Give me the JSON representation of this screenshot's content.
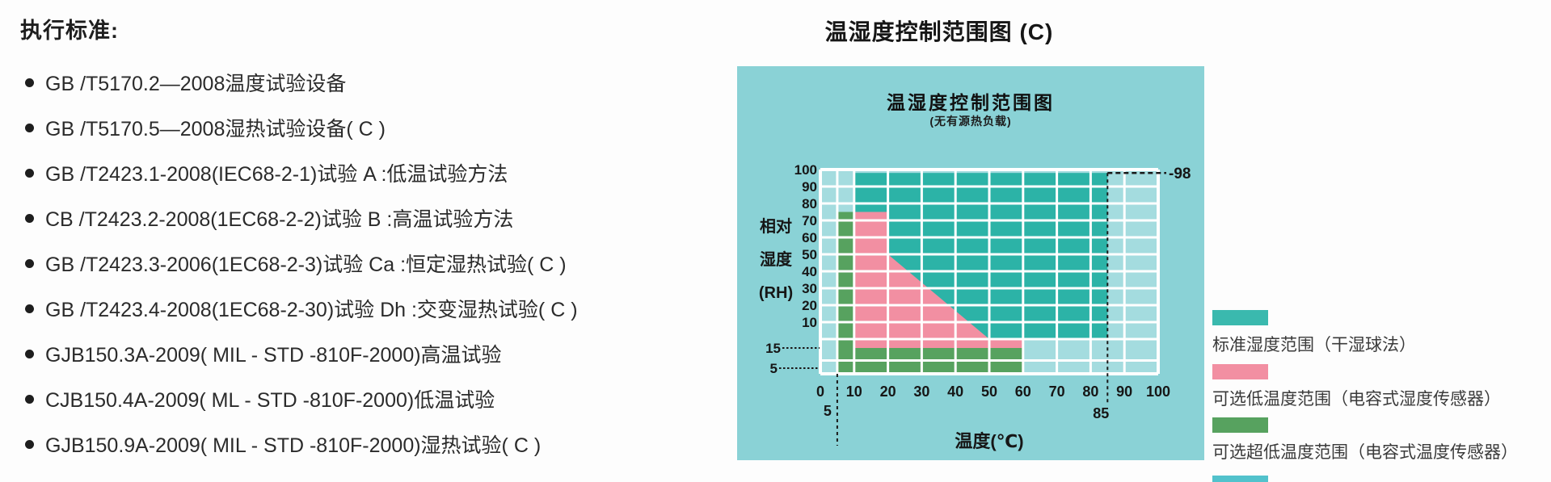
{
  "standards": {
    "heading": "执行标准:",
    "items": [
      "GB /T5170.2—2008温度试验设备",
      "GB /T5170.5—2008湿热试验设备( C )",
      "GB /T2423.1-2008(IEC68-2-1)试验 A :低温试验方法",
      "CB /T2423.2-2008(1EC68-2-2)试验 B :高温试验方法",
      "GB /T2423.3-2006(1EC68-2-3)试验 Ca :恒定湿热试验( C )",
      "GB /T2423.4-2008(1EC68-2-30)试验 Dh :交变湿热试验( C )",
      "GJB150.3A-2009( MIL - STD -810F-2000)高温试验",
      "CJB150.4A-2009( ML - STD -810F-2000)低温试验",
      "GJB150.9A-2009( MIL - STD -810F-2000)湿热试验( C )"
    ]
  },
  "chart": {
    "outer_title": "温湿度控制范围图 (C)"
  },
  "chart_data": {
    "type": "area",
    "title": "温湿度控制范围图",
    "subtitle": "(无有源热负载)",
    "xlabel": "温度(℃)",
    "ylabel": "相对湿度(RH)",
    "ylabel_lines": [
      "相对",
      "湿度",
      "(RH)"
    ],
    "x_ticks": [
      0,
      10,
      20,
      30,
      40,
      50,
      60,
      70,
      80,
      90,
      100
    ],
    "x_sub_ticks": [
      5,
      85
    ],
    "y_ticks": [
      100,
      90,
      80,
      70,
      60,
      50,
      40,
      30,
      20,
      10
    ],
    "y_sub_ticks": [
      15,
      5
    ],
    "xlim": [
      0,
      100
    ],
    "ylim": [
      0,
      100
    ],
    "grid": true,
    "max_humidity_line": {
      "value": 98,
      "label": "-98",
      "temp_start": 85
    },
    "dashed_temp_lines": [
      85,
      5
    ],
    "colors": {
      "panel_bg": "#8ad2d6",
      "plot_bg": "#a4dcdf",
      "grid_line": "#ffffff",
      "standard": "#2cb3a7",
      "low_temp": "#f28fa2",
      "ultra_low": "#57a25f"
    },
    "regions": [
      {
        "name": "standard_humidity",
        "label": "标准湿度范围（干湿球法）",
        "color": "#2cb3a7",
        "temp_range": [
          10,
          85
        ],
        "rh_range": [
          15,
          98
        ]
      },
      {
        "name": "optional_low_temperature",
        "label": "可选低温度范围（电容式湿度传感器）",
        "color": "#f28fa2",
        "temp_range": [
          10,
          60
        ],
        "rh_range": [
          15,
          75
        ],
        "boundary_diagonal": [
          [
            20,
            50
          ],
          [
            50,
            15
          ]
        ]
      },
      {
        "name": "optional_ultra_low_temperature",
        "label": "可选超低温度范围（电容式温度传感器）",
        "color": "#57a25f",
        "temp_range": [
          5,
          60
        ],
        "rh_range": [
          5,
          15
        ],
        "column_temp_range": [
          5,
          10
        ],
        "column_rh_range": [
          5,
          75
        ]
      }
    ]
  },
  "legend": {
    "items": [
      {
        "color": "#3ab9ae",
        "label": "标准湿度范围（干湿球法）"
      },
      {
        "color": "#f28fa2",
        "label": "可选低温度范围（电容式湿度传感器）"
      },
      {
        "color": "#57a25f",
        "label": "可选超低温度范围（电容式温度传感器）"
      }
    ],
    "partial_swatch_color": "#52c2cc"
  }
}
